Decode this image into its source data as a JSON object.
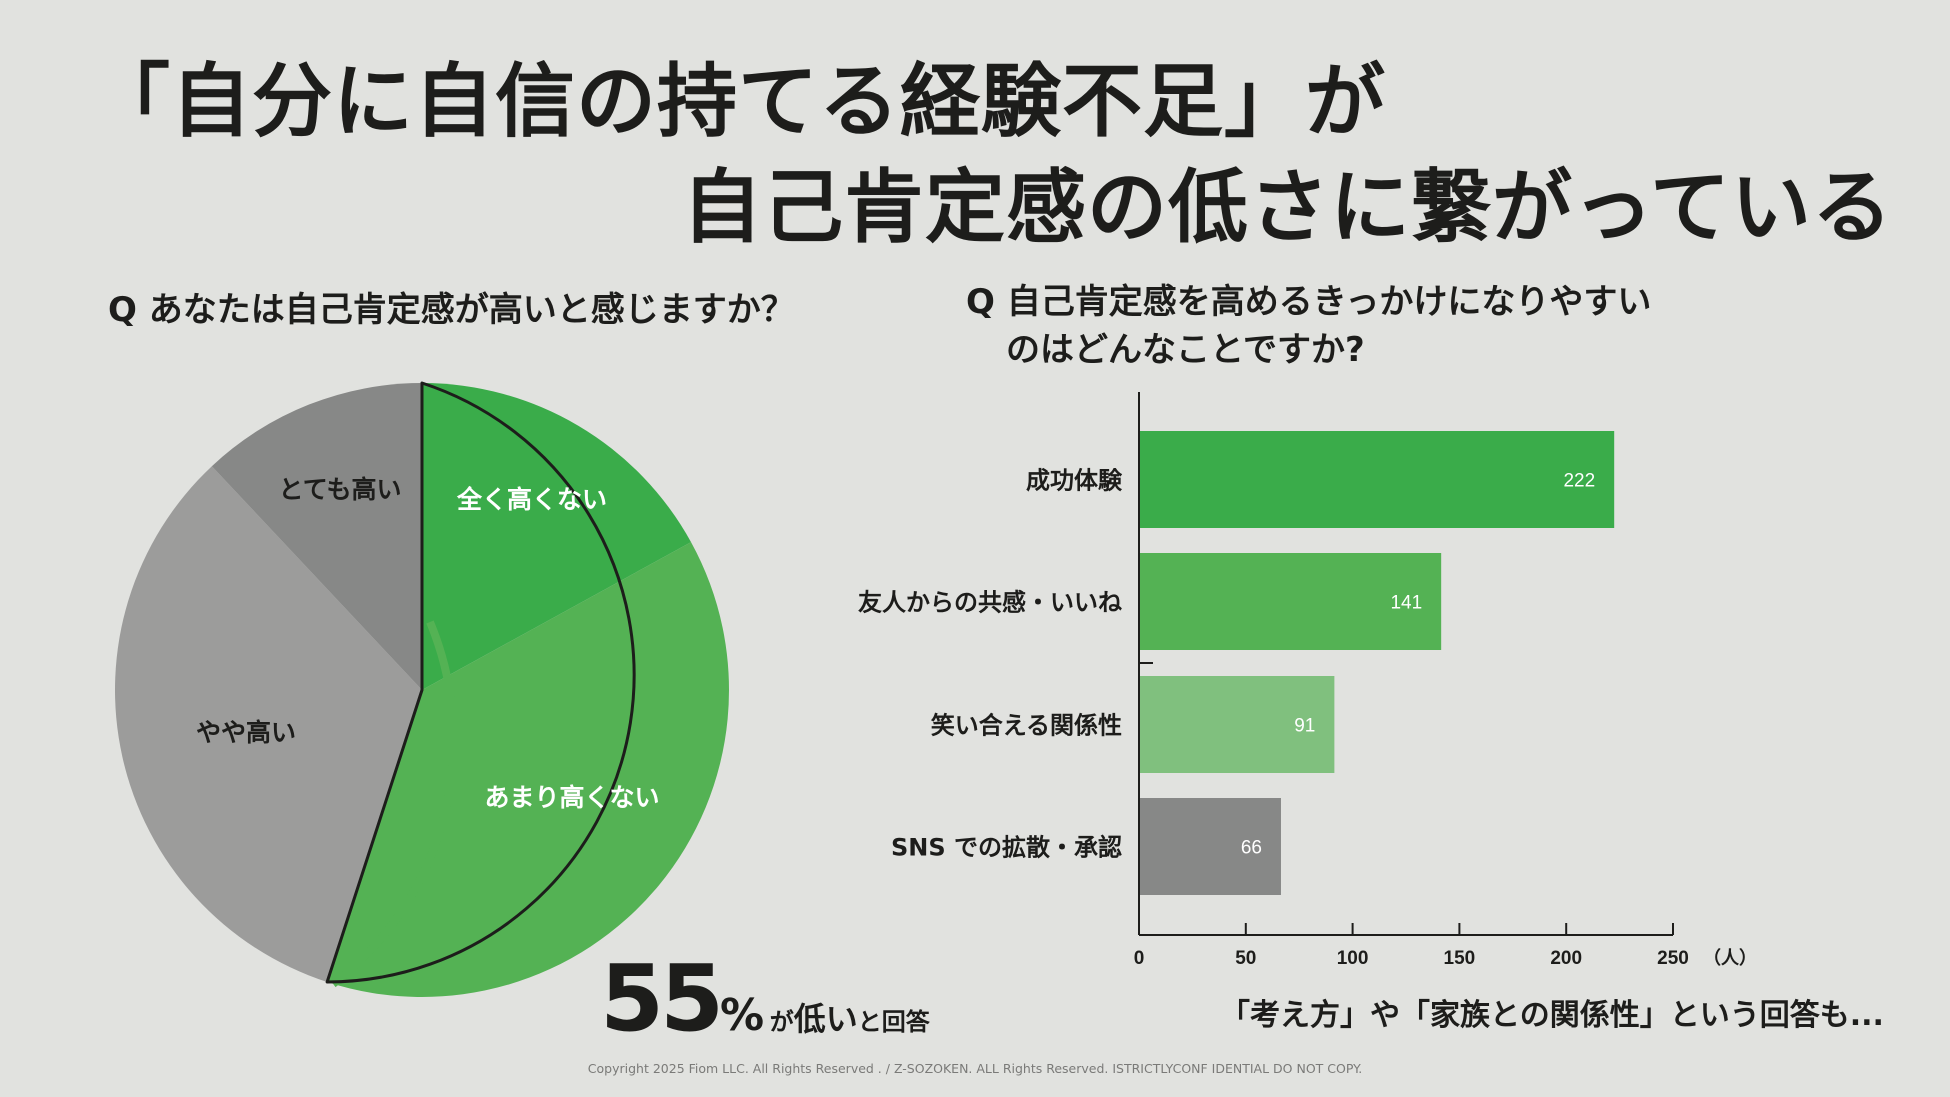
{
  "headline": {
    "line1": "「自分に自信の持てる経験不足」が",
    "line2": "自己肯定感の低さに繋がっている"
  },
  "pie_question": "Q あなたは自己肯定感が高いと感じますか？",
  "bar_question": {
    "line1": "Q 自己肯定感を高めるきっかけになりやすい",
    "line2": "のはどんなことですか?"
  },
  "summary": {
    "number": "55",
    "percent_sign": "%",
    "ga": "が",
    "hikui": "低い",
    "to_kaito": "と回答"
  },
  "note": "「考え方」や「家族との関係性」という回答も...",
  "copyright": "Copyright 2025 Fiom LLC. All Rights Reserved . / Z-SOZOKEN. ALL Rights Reserved. ISTRICTLYCONF IDENTIAL DO NOT COPY.",
  "colors": {
    "background": "#e1e2df",
    "green_dark": "#3aac4a",
    "green_mid": "#54b254",
    "green_light": "#80c07e",
    "gray_dark": "#878887",
    "gray_light": "#9c9c9b",
    "text": "#1d1d1b"
  },
  "chart_data": [
    {
      "type": "pie",
      "slices": [
        {
          "label": "全く高くない",
          "value": 17,
          "color": "#3aac4a"
        },
        {
          "label": "あまり高くない",
          "value": 38,
          "color": "#54b254"
        },
        {
          "label": "やや高い",
          "value": 33,
          "color": "#9c9c9b"
        },
        {
          "label": "とても高い",
          "value": 12,
          "color": "#878887"
        }
      ]
    },
    {
      "type": "bar",
      "orientation": "horizontal",
      "categories": [
        "成功体験",
        "友人からの共感・いいね",
        "笑い合える関係性",
        "SNS での拡散・承認"
      ],
      "values": [
        222,
        141,
        91,
        66
      ],
      "colors": [
        "#3aac4a",
        "#54b254",
        "#80c07e",
        "#878887"
      ],
      "xticks": [
        "0",
        "50",
        "100",
        "150",
        "200",
        "250"
      ],
      "xlim": [
        0,
        250
      ],
      "unit": "（人）"
    }
  ]
}
